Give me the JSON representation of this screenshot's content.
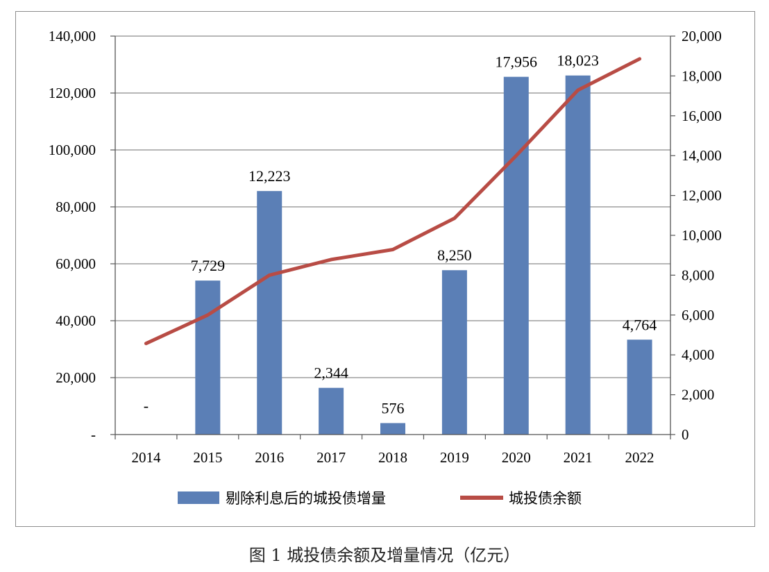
{
  "caption": "图 1 城投债余额及增量情况（亿元）",
  "chart_data": {
    "type": "bar+line",
    "categories": [
      "2014",
      "2015",
      "2016",
      "2017",
      "2018",
      "2019",
      "2020",
      "2021",
      "2022"
    ],
    "series": [
      {
        "name": "剔除利息后的城投债增量",
        "type": "bar",
        "axis": "right",
        "values": [
          0,
          7729,
          12223,
          2344,
          576,
          8250,
          17956,
          18023,
          4764
        ],
        "labels": [
          "-",
          "7,729",
          "12,223",
          "2,344",
          "576",
          "8,250",
          "17,956",
          "18,023",
          "4,764"
        ],
        "color": "#5b7fb6"
      },
      {
        "name": "城投债余额",
        "type": "line",
        "axis": "left",
        "values": [
          32000,
          42000,
          56000,
          61500,
          65000,
          76000,
          98000,
          121000,
          132000
        ],
        "color": "#b84c45"
      }
    ],
    "left_axis": {
      "ylim": [
        0,
        140000
      ],
      "ticks": [
        "-",
        "20,000",
        "40,000",
        "60,000",
        "80,000",
        "100,000",
        "120,000",
        "140,000"
      ]
    },
    "right_axis": {
      "ylim": [
        0,
        20000
      ],
      "ticks": [
        "0",
        "2,000",
        "4,000",
        "6,000",
        "8,000",
        "10,000",
        "12,000",
        "14,000",
        "16,000",
        "18,000",
        "20,000"
      ]
    },
    "grid": true,
    "legend": "bottom"
  }
}
